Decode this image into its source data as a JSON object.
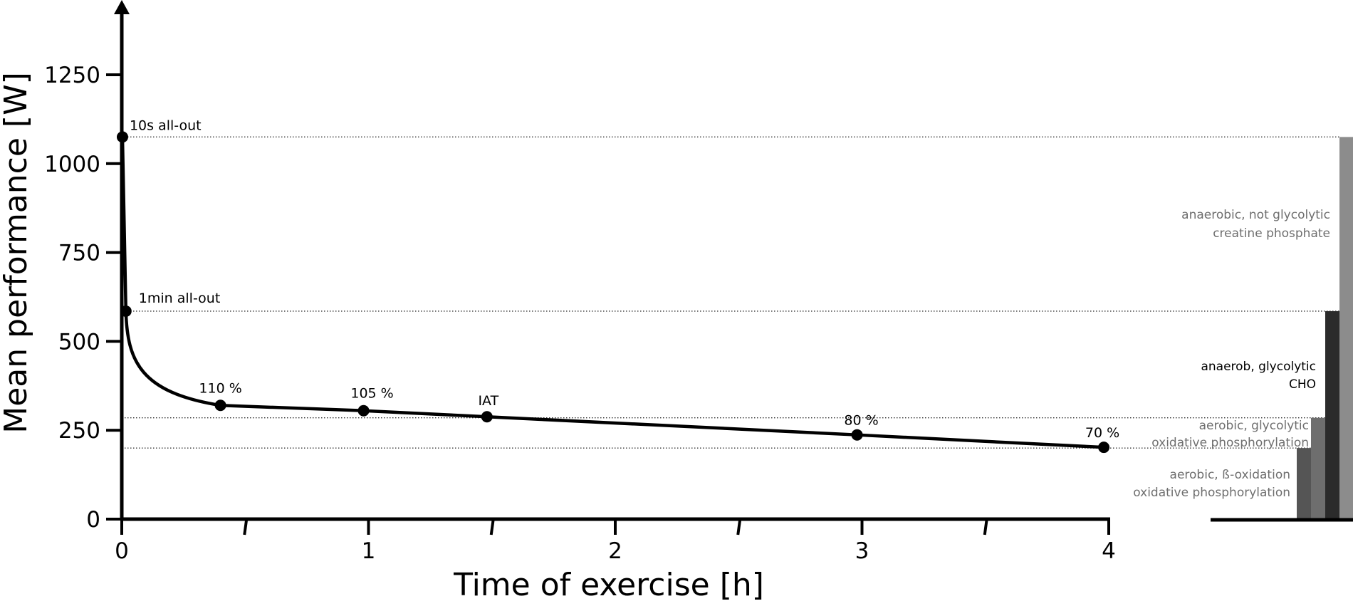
{
  "chart_data": {
    "type": "line",
    "title": "",
    "xlabel": "Time of exercise [h]",
    "ylabel": "Mean performance [W]",
    "xlim": [
      0,
      4
    ],
    "ylim": [
      0,
      1250
    ],
    "x_ticks": [
      0,
      1,
      2,
      3,
      4
    ],
    "x_minor_ticks": [
      0.5,
      1.5,
      2.5,
      3.5
    ],
    "y_ticks": [
      0,
      250,
      500,
      750,
      1000,
      1250
    ],
    "grid": false,
    "series": [
      {
        "points": [
          {
            "x": 0.0028,
            "y": 1075,
            "label": "10s all-out"
          },
          {
            "x": 0.0167,
            "y": 585,
            "label": "1min all-out"
          },
          {
            "x": 0.4,
            "y": 320,
            "label": "110 %"
          },
          {
            "x": 0.98,
            "y": 305,
            "label": "105 %"
          },
          {
            "x": 1.48,
            "y": 288,
            "label": "IAT"
          },
          {
            "x": 2.98,
            "y": 237,
            "label": "80 %"
          },
          {
            "x": 3.98,
            "y": 202,
            "label": "70 %"
          }
        ]
      }
    ],
    "reference_lines": [
      1075,
      585,
      285,
      200
    ],
    "energy_zones": [
      {
        "line1": "anaerobic, not glycolytic",
        "line2": "creatine phosphate",
        "y_top": 1075,
        "color": "#8c8c8c"
      },
      {
        "line1": "anaerob, glycolytic",
        "line2": "CHO",
        "y_top": 585,
        "color": "#2b2b2b"
      },
      {
        "line1": "aerobic, glycolytic",
        "line2": "oxidative phosphorylation",
        "y_top": 285,
        "color": "#6e6e6e"
      },
      {
        "line1": "aerobic, ß-oxidation",
        "line2": "oxidative phosphorylation",
        "y_top": 200,
        "color": "#555555"
      }
    ],
    "colors": {
      "line": "#000000",
      "zone_text": "#6e6e6e",
      "zone_text_dark": "#000000"
    }
  }
}
